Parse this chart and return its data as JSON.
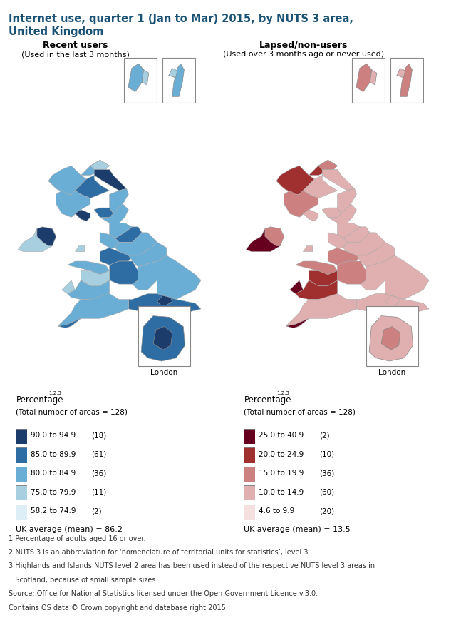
{
  "title_line1": "Internet use, quarter 1 (Jan to Mar) 2015, by NUTS 3 area,",
  "title_line2": "United Kingdom",
  "title_color": "#1a5276",
  "left_map_title": "Recent users",
  "left_map_subtitle": "(Used in the last 3 months)",
  "right_map_title": "Lapsed/non-users",
  "right_map_subtitle": "(Used over 3 months ago or never used)",
  "left_legend_items": [
    {
      "label": "90.0 to 94.9",
      "count": "(18)",
      "color": "#1c3d6b"
    },
    {
      "label": "85.0 to 89.9",
      "count": "(61)",
      "color": "#2e6da4"
    },
    {
      "label": "80.0 to 84.9",
      "count": "(36)",
      "color": "#6aaed6"
    },
    {
      "label": "75.0 to 79.9",
      "count": "(11)",
      "color": "#a8cfe0"
    },
    {
      "label": "58.2 to 74.9",
      "count": "(2)",
      "color": "#ddeef6"
    }
  ],
  "left_mean": "UK average (mean) = 86.2",
  "right_legend_items": [
    {
      "label": "25.0 to 40.9",
      "count": "(2)",
      "color": "#67001f"
    },
    {
      "label": "20.0 to 24.9",
      "count": "(10)",
      "color": "#a03030"
    },
    {
      "label": "15.0 to 19.9",
      "count": "(36)",
      "color": "#cc8080"
    },
    {
      "label": "10.0 to 14.9",
      "count": "(60)",
      "color": "#e0b0b0"
    },
    {
      "label": "4.6 to 9.9",
      "count": "(20)",
      "color": "#f5e0e0"
    }
  ],
  "right_mean": "UK average (mean) = 13.5",
  "footnotes": [
    "1 Percentage of adults aged 16 or over.",
    "2 NUTS 3 is an abbreviation for ‘nomenclature of territorial units for statistics’, level 3.",
    "3 Highlands and Islands NUTS level 2 area has been used instead of the respective NUTS level 3 areas in",
    "   Scotland, because of small sample sizes.",
    "Source: Office for National Statistics licensed under the Open Government Licence v.3.0.",
    "Contains OS data © Crown copyright and database right 2015"
  ],
  "background_color": "#ffffff",
  "superscript": "1,2,3"
}
